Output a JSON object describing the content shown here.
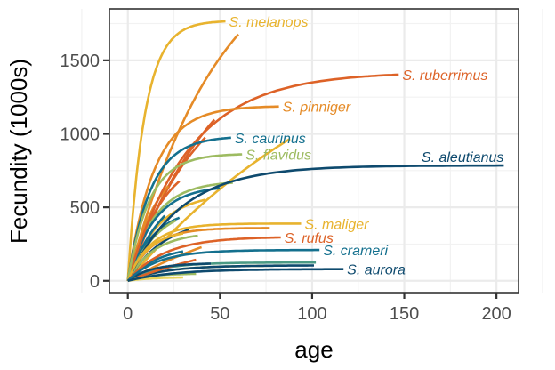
{
  "chart_data": {
    "type": "line",
    "title": "",
    "xlabel": "age",
    "ylabel": "Fecundity (1000s)",
    "xlim": [
      -10,
      212
    ],
    "ylim": [
      -80,
      1850
    ],
    "xticks": [
      0,
      50,
      100,
      150,
      200
    ],
    "yticks": [
      0,
      500,
      1000,
      1500
    ],
    "grid": true,
    "legend": "none (direct labels)",
    "labeled_series": [
      {
        "name": "S. melanops",
        "color": "#E8B32E",
        "fmax": 1770,
        "k": 0.11,
        "max_age": 53
      },
      {
        "name": "S. ruberrimus",
        "color": "#DD6227",
        "fmax": 1420,
        "k": 0.03,
        "max_age": 147
      },
      {
        "name": "S. pinniger",
        "color": "#E58B27",
        "fmax": 1190,
        "k": 0.07,
        "max_age": 82
      },
      {
        "name": "S. caurinus",
        "color": "#14708E",
        "fmax": 985,
        "k": 0.08,
        "max_age": 56
      },
      {
        "name": "S. flavidus",
        "color": "#9DBB61",
        "fmax": 865,
        "k": 0.085,
        "max_age": 62
      },
      {
        "name": "S. aleutianus",
        "color": "#0E4A6E",
        "fmax": 785,
        "k": 0.035,
        "max_age": 204
      },
      {
        "name": "S. maliger",
        "color": "#E8B32E",
        "fmax": 390,
        "k": 0.08,
        "max_age": 94
      },
      {
        "name": "S. rufus",
        "color": "#DD6227",
        "fmax": 300,
        "k": 0.05,
        "max_age": 83
      },
      {
        "name": "S. crameri",
        "color": "#14708E",
        "fmax": 210,
        "k": 0.06,
        "max_age": 104
      },
      {
        "name": "S. aurora",
        "color": "#0E4A6E",
        "fmax": 80,
        "k": 0.04,
        "max_age": 117
      }
    ],
    "unlabeled_series": [
      {
        "color": "#E58B27",
        "fmax": 2400,
        "k": 0.02,
        "max_age": 60
      },
      {
        "color": "#DD6227",
        "fmax": 1800,
        "k": 0.02,
        "max_age": 47
      },
      {
        "color": "#E8B32E",
        "fmax": 2000,
        "k": 0.0075,
        "max_age": 88
      },
      {
        "color": "#DD6227",
        "fmax": 1500,
        "k": 0.025,
        "max_age": 42
      },
      {
        "color": "#E58B27",
        "fmax": 880,
        "k": 0.06,
        "max_age": 22
      },
      {
        "color": "#DD6227",
        "fmax": 900,
        "k": 0.05,
        "max_age": 28
      },
      {
        "color": "#9DBB61",
        "fmax": 680,
        "k": 0.07,
        "max_age": 57
      },
      {
        "color": "#14708E",
        "fmax": 650,
        "k": 0.07,
        "max_age": 50
      },
      {
        "color": "#E8B32E",
        "fmax": 600,
        "k": 0.06,
        "max_age": 42
      },
      {
        "color": "#0E4A6E",
        "fmax": 430,
        "k": 0.05,
        "max_age": 33
      },
      {
        "color": "#14708E",
        "fmax": 500,
        "k": 0.07,
        "max_age": 28
      },
      {
        "color": "#E58B27",
        "fmax": 360,
        "k": 0.08,
        "max_age": 77
      },
      {
        "color": "#9DBB61",
        "fmax": 330,
        "k": 0.07,
        "max_age": 38
      },
      {
        "color": "#E8B32E",
        "fmax": 345,
        "k": 0.09,
        "max_age": 30
      },
      {
        "color": "#14708E",
        "fmax": 240,
        "k": 0.06,
        "max_age": 30
      },
      {
        "color": "#E58B27",
        "fmax": 600,
        "k": 0.012,
        "max_age": 40
      },
      {
        "color": "#4A9A84",
        "fmax": 125,
        "k": 0.06,
        "max_age": 102
      },
      {
        "color": "#E8D35A",
        "fmax": 105,
        "k": 0.05,
        "max_age": 85
      },
      {
        "color": "#0E4A6E",
        "fmax": 105,
        "k": 0.05,
        "max_age": 101
      },
      {
        "color": "#DD6227",
        "fmax": 400,
        "k": 0.012,
        "max_age": 37
      },
      {
        "color": "#9DBB61",
        "fmax": 50,
        "k": 0.08,
        "max_age": 37
      },
      {
        "color": "#E8D35A",
        "fmax": 25,
        "k": 0.08,
        "max_age": 30
      },
      {
        "color": "#0E4A6E",
        "fmax": 120,
        "k": 0.08,
        "max_age": 45
      },
      {
        "color": "#14708E",
        "fmax": 700,
        "k": 0.05,
        "max_age": 20
      },
      {
        "color": "#9DBB61",
        "fmax": 520,
        "k": 0.06,
        "max_age": 26
      }
    ]
  }
}
